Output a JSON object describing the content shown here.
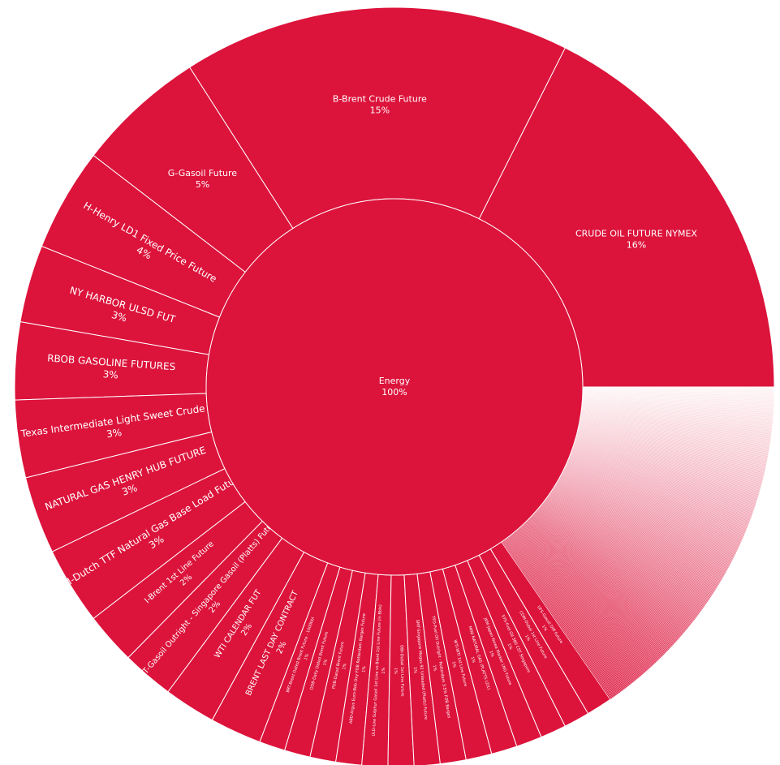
{
  "chart_data": {
    "type": "sunburst",
    "color": "#dc133b",
    "root": {
      "label": "Energy",
      "pct": "100%"
    },
    "children": [
      {
        "label": "CRUDE OIL FUTURE NYMEX",
        "pct": "16%",
        "value": 16
      },
      {
        "label": "B-Brent Crude Future",
        "pct": "15%",
        "value": 15
      },
      {
        "label": "G-Gasoil Future",
        "pct": "5%",
        "value": 5
      },
      {
        "label": "H-Henry LD1 Fixed Price Future",
        "pct": "4%",
        "value": 4
      },
      {
        "label": "NY HARBOR ULSD FUT",
        "pct": "3%",
        "value": 3
      },
      {
        "label": "RBOB GASOLINE FUTURES",
        "pct": "3%",
        "value": 3
      },
      {
        "label": "T-West Texas Intermediate Light Sweet Crude Future",
        "pct": "3%",
        "value": 3
      },
      {
        "label": "NATURAL GAS HENRY HUB FUTURE",
        "pct": "3%",
        "value": 3
      },
      {
        "label": "TFM-Dutch TTF Natural Gas Base Load Futures",
        "pct": "3%",
        "value": 3
      },
      {
        "label": "I-Brent 1st Line Future",
        "pct": "2%",
        "value": 2
      },
      {
        "label": "GST-Gasoil Outright - Singapore Gasoil (Platts) Future",
        "pct": "2%",
        "value": 2
      },
      {
        "label": "WTI CALENDAR FUT",
        "pct": "2%",
        "value": 2
      },
      {
        "label": "BRENT LAST DAY CONTRACT",
        "pct": "2%",
        "value": 2
      },
      {
        "label": "BRT-Brent Dated Brent Future - 1000bbl",
        "pct": "1%",
        "value": 1
      },
      {
        "label": "DDB-Daily Dated Brent Future",
        "pct": "1%",
        "value": 1
      },
      {
        "label": "PDB-Dated Brent Future",
        "pct": "1%",
        "value": 1
      },
      {
        "label": "ABD-Argus Euro-Bob Oxy FOB Rotterdam Barges Future",
        "pct": "1%",
        "value": 1
      },
      {
        "label": "ULD-Low Sulphur Gasoil 1st Line vs Brent 1st Line Future (in Bbls)",
        "pct": "1%",
        "value": 1
      },
      {
        "label": "DBI-Dubai 1st Line Future",
        "pct": "1%",
        "value": 1
      },
      {
        "label": "SMT-Singapore Mogas 92 Unleaded (Platts) Future",
        "pct": "1%",
        "value": 1
      },
      {
        "label": "TFO-Fuel Oil Outright - Rotterdam 3.5% FOB Barges",
        "pct": "1%",
        "value": 1
      },
      {
        "label": "WTI-WTI 1st Line Future",
        "pct": "1%",
        "value": 1
      },
      {
        "label": "MINI NATURAL GAS (PLATTS LD1)",
        "pct": "1%",
        "value": 1
      },
      {
        "label": "JKM-Japan Korea Marker LNG Future",
        "pct": "1%",
        "value": 1
      },
      {
        "label": "SYS-Fuel Oil 380 CST Singapore",
        "pct": "1%",
        "value": 1
      },
      {
        "label": "CDM-Dubai 1st Line Future",
        "pct": "1%",
        "value": 1
      },
      {
        "label": "UFS-Gasoil Diff Future",
        "pct": "1%",
        "value": 1
      }
    ],
    "tail": {
      "count": 260,
      "value": 14
    }
  }
}
